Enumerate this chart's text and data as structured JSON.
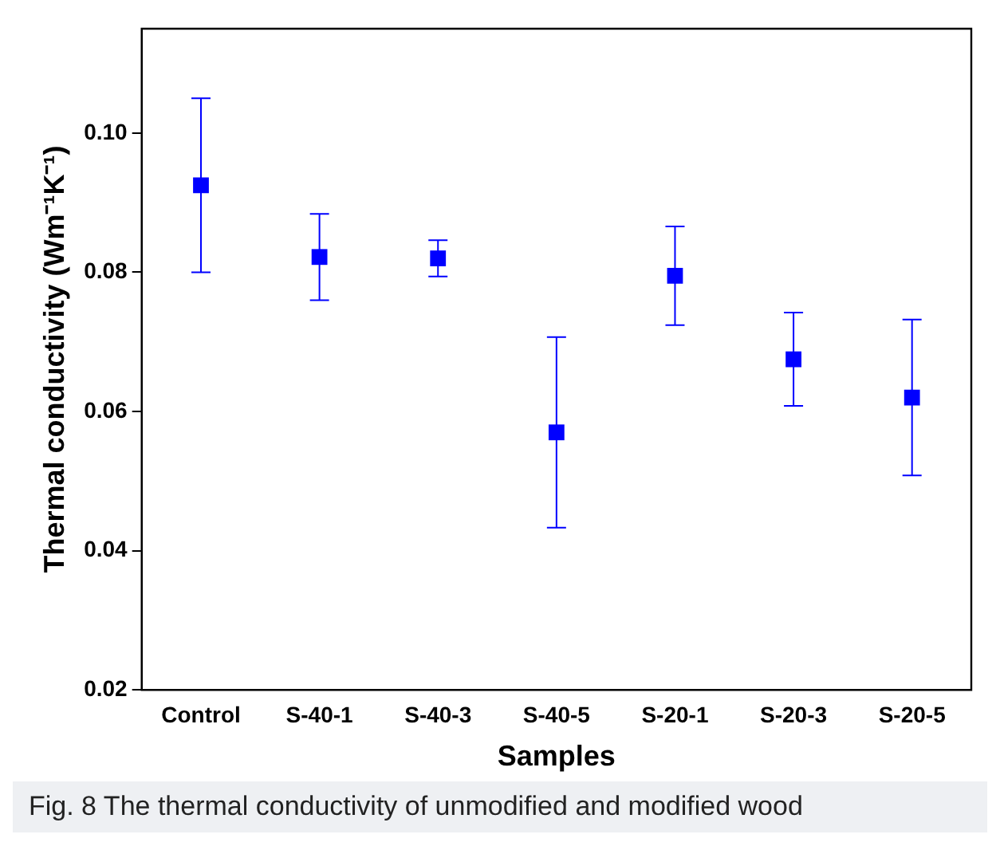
{
  "chart_data": {
    "type": "scatter",
    "xlabel": "Samples",
    "ylabel": "Thermal conductivity (Wm⁻¹K⁻¹)",
    "categories": [
      "Control",
      "S-40-1",
      "S-40-3",
      "S-40-5",
      "S-20-1",
      "S-20-3",
      "S-20-5"
    ],
    "values": [
      0.0925,
      0.0822,
      0.082,
      0.057,
      0.0795,
      0.0675,
      0.062
    ],
    "errors": [
      0.0125,
      0.0062,
      0.0026,
      0.0137,
      0.0071,
      0.0067,
      0.0112
    ],
    "color": "#0000ff",
    "marker": "square",
    "grid": false,
    "legend": false,
    "ylim": [
      0.02,
      0.115
    ],
    "yticks": [
      0.02,
      0.04,
      0.06,
      0.08,
      {
        "value": 0.1,
        "label": "0.10"
      }
    ],
    "annotations": [
      "Fig. 8 The thermal conductivity of unmodified and modified wood"
    ]
  }
}
